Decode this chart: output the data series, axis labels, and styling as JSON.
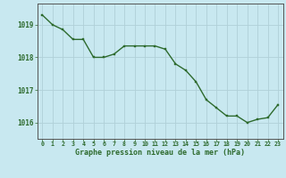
{
  "x": [
    0,
    1,
    2,
    3,
    4,
    5,
    6,
    7,
    8,
    9,
    10,
    11,
    12,
    13,
    14,
    15,
    16,
    17,
    18,
    19,
    20,
    21,
    22,
    23
  ],
  "y": [
    1019.3,
    1019.0,
    1018.85,
    1018.55,
    1018.55,
    1018.0,
    1018.0,
    1018.1,
    1018.35,
    1018.35,
    1018.35,
    1018.35,
    1018.25,
    1017.8,
    1017.6,
    1017.25,
    1016.7,
    1016.45,
    1016.2,
    1016.2,
    1016.0,
    1016.1,
    1016.15,
    1016.55
  ],
  "line_color": "#2d6a2d",
  "marker_color": "#2d6a2d",
  "bg_color": "#c8e8f0",
  "grid_color": "#b0d0d8",
  "border_color": "#888888",
  "tick_label_color": "#2d6a2d",
  "xlabel": "Graphe pression niveau de la mer (hPa)",
  "xlabel_color": "#2d6a2d",
  "ylim": [
    1015.5,
    1019.65
  ],
  "yticks": [
    1016,
    1017,
    1018,
    1019
  ],
  "xticks": [
    0,
    1,
    2,
    3,
    4,
    5,
    6,
    7,
    8,
    9,
    10,
    11,
    12,
    13,
    14,
    15,
    16,
    17,
    18,
    19,
    20,
    21,
    22,
    23
  ],
  "figsize": [
    3.2,
    2.0
  ],
  "dpi": 100
}
